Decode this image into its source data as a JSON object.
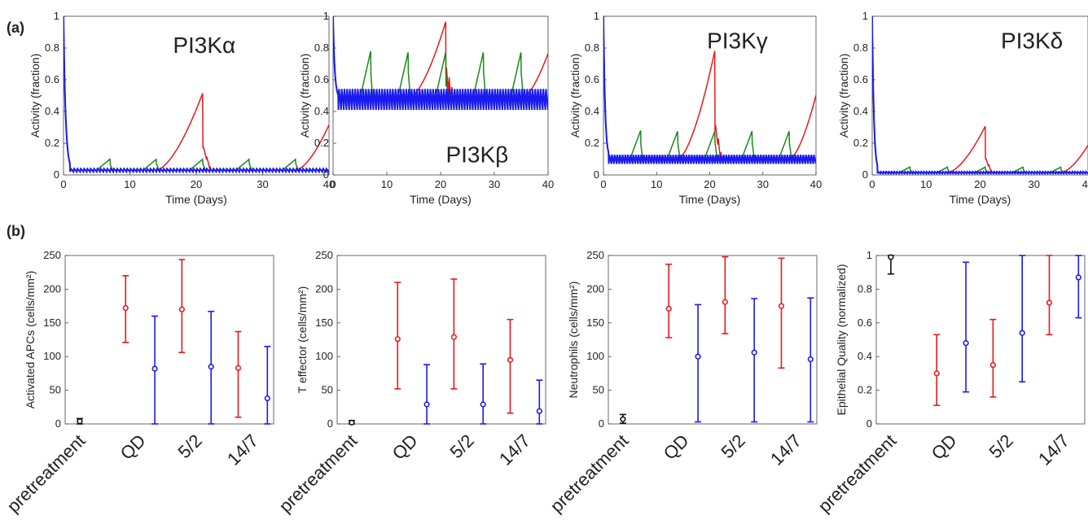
{
  "panels": {
    "a": "(a)",
    "b": "(b)"
  },
  "colors": {
    "red": "#e8191b",
    "green": "#178a17",
    "blue": "#1a1af0",
    "black": "#111111"
  },
  "chart_data": [
    {
      "type": "line",
      "label": "PI3Kα",
      "xlabel": "Time (Days)",
      "ylabel": "Activity (fraction)",
      "xlim": [
        0,
        40
      ],
      "ylim": [
        0,
        1
      ],
      "xticks": [
        0,
        10,
        20,
        30,
        40
      ],
      "yticks": [
        0,
        0.2,
        0.4,
        0.6,
        0.8,
        1
      ],
      "series_params": {
        "base": 0.03,
        "osc": 0.01,
        "init_peak": 1.0,
        "green_peak": 0.1,
        "red_peak": 0.52
      }
    },
    {
      "type": "line",
      "label": "PI3Kβ",
      "xlabel": "Time (Days)",
      "ylabel": "Activity (fraction)",
      "xlim": [
        0,
        40
      ],
      "ylim": [
        0,
        1
      ],
      "xticks": [
        0,
        10,
        20,
        30,
        40
      ],
      "yticks": [
        0,
        0.2,
        0.4,
        0.6,
        0.8,
        1
      ],
      "series_params": {
        "base": 0.48,
        "osc": 0.07,
        "init_peak": 1.0,
        "green_peak": 0.78,
        "red_peak": 0.97
      }
    },
    {
      "type": "line",
      "label": "PI3Kγ",
      "xlabel": "Time (Days)",
      "ylabel": "Activity (fraction)",
      "xlim": [
        0,
        40
      ],
      "ylim": [
        0,
        1
      ],
      "xticks": [
        0,
        10,
        20,
        30,
        40
      ],
      "yticks": [
        0,
        0.2,
        0.4,
        0.6,
        0.8,
        1
      ],
      "series_params": {
        "base": 0.1,
        "osc": 0.03,
        "init_peak": 1.0,
        "green_peak": 0.28,
        "red_peak": 0.79
      }
    },
    {
      "type": "line",
      "label": "PI3Kδ",
      "xlabel": "Time (Days)",
      "ylabel": "Activity (fraction)",
      "xlim": [
        0,
        40
      ],
      "ylim": [
        0,
        1
      ],
      "xticks": [
        0,
        10,
        20,
        30,
        40
      ],
      "yticks": [
        0,
        0.2,
        0.4,
        0.6,
        0.8,
        1
      ],
      "series_params": {
        "base": 0.015,
        "osc": 0.006,
        "init_peak": 1.0,
        "green_peak": 0.05,
        "red_peak": 0.31
      }
    },
    {
      "type": "errorbar",
      "ylabel": "Activated APCs (cells/mm²)",
      "ylim": [
        0,
        250
      ],
      "yticks": [
        0,
        50,
        100,
        150,
        200,
        250
      ],
      "categories": [
        "pretreatment",
        "QD",
        "5/2",
        "14/7"
      ],
      "points": [
        {
          "cat": 0,
          "color": "black",
          "mean": 4,
          "low": 0,
          "high": 8
        },
        {
          "cat": 1,
          "color": "red",
          "mean": 172,
          "low": 121,
          "high": 220
        },
        {
          "cat": 1,
          "color": "blue",
          "mean": 82,
          "low": 0,
          "high": 160
        },
        {
          "cat": 2,
          "color": "red",
          "mean": 170,
          "low": 106,
          "high": 244
        },
        {
          "cat": 2,
          "color": "blue",
          "mean": 85,
          "low": 0,
          "high": 167
        },
        {
          "cat": 3,
          "color": "red",
          "mean": 83,
          "low": 10,
          "high": 137
        },
        {
          "cat": 3,
          "color": "blue",
          "mean": 38,
          "low": 0,
          "high": 115
        }
      ]
    },
    {
      "type": "errorbar",
      "ylabel": "T effector (cells/mm²)",
      "ylim": [
        0,
        250
      ],
      "yticks": [
        0,
        50,
        100,
        150,
        200,
        250
      ],
      "categories": [
        "pretreatment",
        "QD",
        "5/2",
        "14/7"
      ],
      "points": [
        {
          "cat": 0,
          "color": "black",
          "mean": 2,
          "low": 0,
          "high": 5
        },
        {
          "cat": 1,
          "color": "red",
          "mean": 126,
          "low": 52,
          "high": 210
        },
        {
          "cat": 1,
          "color": "blue",
          "mean": 29,
          "low": 0,
          "high": 88
        },
        {
          "cat": 2,
          "color": "red",
          "mean": 129,
          "low": 52,
          "high": 215
        },
        {
          "cat": 2,
          "color": "blue",
          "mean": 29,
          "low": 0,
          "high": 89
        },
        {
          "cat": 3,
          "color": "red",
          "mean": 95,
          "low": 16,
          "high": 155
        },
        {
          "cat": 3,
          "color": "blue",
          "mean": 19,
          "low": 0,
          "high": 65
        }
      ]
    },
    {
      "type": "errorbar",
      "ylabel": "Neutrophils (cells/mm²)",
      "ylim": [
        0,
        250
      ],
      "yticks": [
        0,
        50,
        100,
        150,
        200,
        250
      ],
      "categories": [
        "pretreatment",
        "QD",
        "5/2",
        "14/7"
      ],
      "points": [
        {
          "cat": 0,
          "color": "black",
          "mean": 7,
          "low": 1,
          "high": 14
        },
        {
          "cat": 1,
          "color": "red",
          "mean": 171,
          "low": 128,
          "high": 237
        },
        {
          "cat": 1,
          "color": "blue",
          "mean": 100,
          "low": 3,
          "high": 177
        },
        {
          "cat": 2,
          "color": "red",
          "mean": 181,
          "low": 134,
          "high": 248
        },
        {
          "cat": 2,
          "color": "blue",
          "mean": 106,
          "low": 3,
          "high": 186
        },
        {
          "cat": 3,
          "color": "red",
          "mean": 175,
          "low": 83,
          "high": 246
        },
        {
          "cat": 3,
          "color": "blue",
          "mean": 96,
          "low": 3,
          "high": 187
        }
      ]
    },
    {
      "type": "errorbar",
      "ylabel": "Epithelial Quality (normalized)",
      "ylim": [
        0,
        1
      ],
      "yticks": [
        0,
        0.2,
        0.4,
        0.6,
        0.8,
        1
      ],
      "categories": [
        "pretreatment",
        "QD",
        "5/2",
        "14/7"
      ],
      "points": [
        {
          "cat": 0,
          "color": "black",
          "mean": 0.99,
          "low": 0.89,
          "high": 1.0
        },
        {
          "cat": 1,
          "color": "red",
          "mean": 0.3,
          "low": 0.11,
          "high": 0.53
        },
        {
          "cat": 1,
          "color": "blue",
          "mean": 0.48,
          "low": 0.19,
          "high": 0.96
        },
        {
          "cat": 2,
          "color": "red",
          "mean": 0.35,
          "low": 0.16,
          "high": 0.62
        },
        {
          "cat": 2,
          "color": "blue",
          "mean": 0.54,
          "low": 0.25,
          "high": 1.0
        },
        {
          "cat": 3,
          "color": "red",
          "mean": 0.72,
          "low": 0.53,
          "high": 1.0
        },
        {
          "cat": 3,
          "color": "blue",
          "mean": 0.87,
          "low": 0.63,
          "high": 1.0
        }
      ]
    }
  ]
}
